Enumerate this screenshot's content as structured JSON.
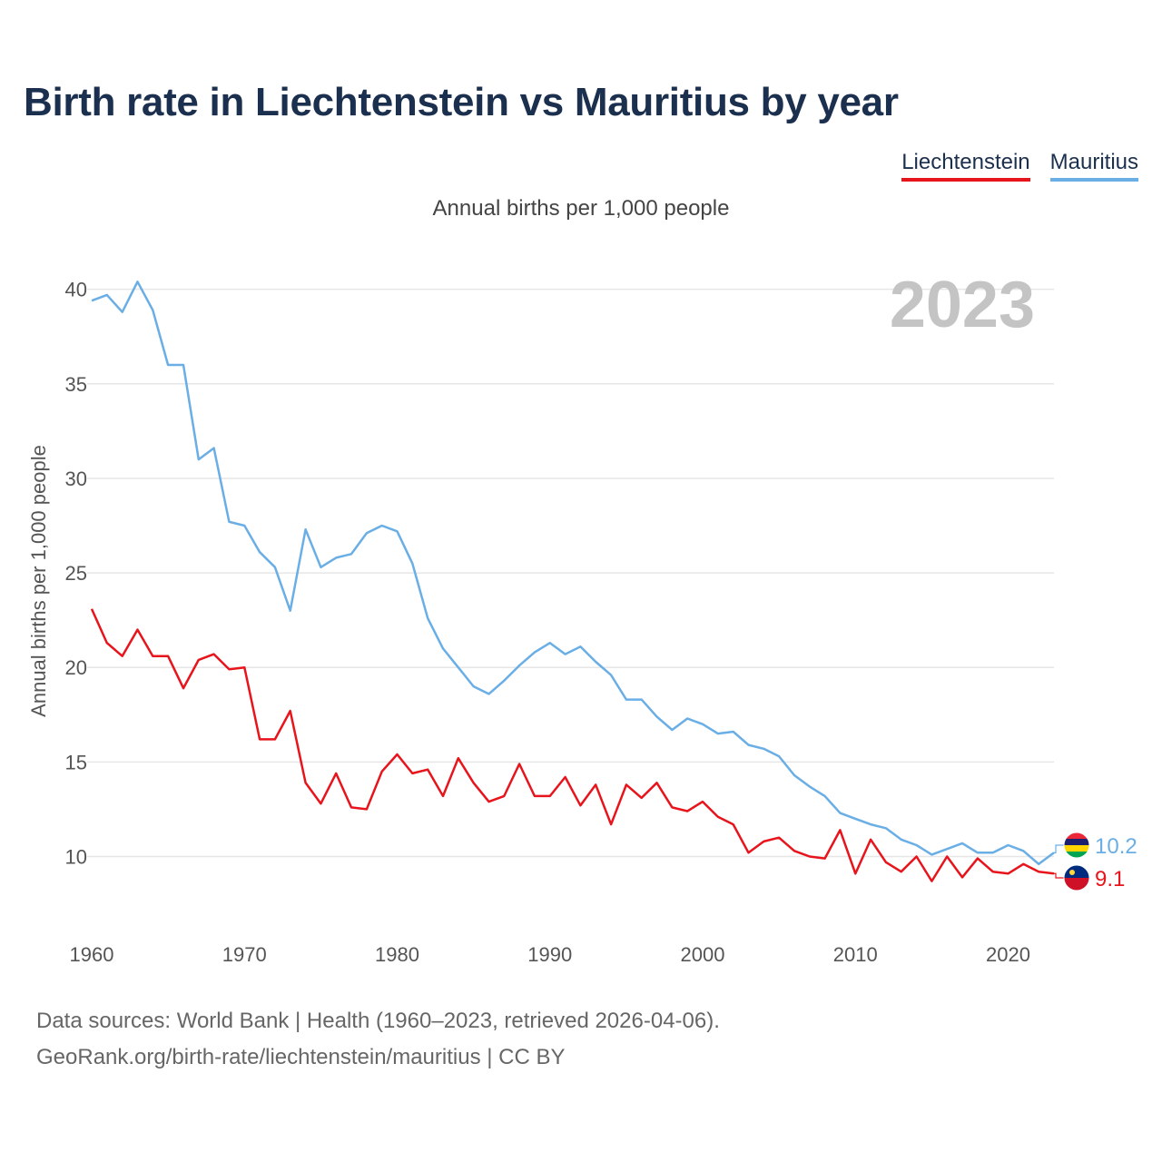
{
  "title": "Birth rate in Liechtenstein vs Mauritius by year",
  "subtitle": "Annual births per 1,000 people",
  "footer": {
    "source": "Data sources: World Bank | Health (1960–2023, retrieved 2026-04-06).",
    "credit": "GeoRank.org/birth-rate/liechtenstein/mauritius | CC BY"
  },
  "chart_data": {
    "type": "line",
    "title": "Birth rate in Liechtenstein vs Mauritius by year",
    "ylabel": "Annual births per 1,000 people",
    "xlabel": "",
    "xlim": [
      1960,
      2023
    ],
    "ylim": [
      7,
      42
    ],
    "x_ticks": [
      1960,
      1970,
      1980,
      1990,
      2000,
      2010,
      2020
    ],
    "y_ticks": [
      10,
      15,
      20,
      25,
      30,
      35,
      40
    ],
    "year_label": "2023",
    "grid": true,
    "legend_position": "top-right",
    "x": [
      1960,
      1961,
      1962,
      1963,
      1964,
      1965,
      1966,
      1967,
      1968,
      1969,
      1970,
      1971,
      1972,
      1973,
      1974,
      1975,
      1976,
      1977,
      1978,
      1979,
      1980,
      1981,
      1982,
      1983,
      1984,
      1985,
      1986,
      1987,
      1988,
      1989,
      1990,
      1991,
      1992,
      1993,
      1994,
      1995,
      1996,
      1997,
      1998,
      1999,
      2000,
      2001,
      2002,
      2003,
      2004,
      2005,
      2006,
      2007,
      2008,
      2009,
      2010,
      2011,
      2012,
      2013,
      2014,
      2015,
      2016,
      2017,
      2018,
      2019,
      2020,
      2021,
      2022,
      2023
    ],
    "series": [
      {
        "name": "Liechtenstein",
        "color": "#e8141c",
        "end_label": "9.1",
        "values": [
          23.1,
          21.3,
          20.6,
          22.0,
          20.6,
          20.6,
          18.9,
          20.4,
          20.7,
          19.9,
          20.0,
          16.2,
          16.2,
          17.7,
          13.9,
          12.8,
          14.4,
          12.6,
          12.5,
          14.5,
          15.4,
          14.4,
          14.6,
          13.2,
          15.2,
          13.9,
          12.9,
          13.2,
          14.9,
          13.2,
          13.2,
          14.2,
          12.7,
          13.8,
          11.7,
          13.8,
          13.1,
          13.9,
          12.6,
          12.4,
          12.9,
          12.1,
          11.7,
          10.2,
          10.8,
          11.0,
          10.3,
          10.0,
          9.9,
          11.4,
          9.1,
          10.9,
          9.7,
          9.2,
          10.0,
          8.7,
          10.0,
          8.9,
          9.9,
          9.2,
          9.1,
          9.6,
          9.2,
          9.1
        ]
      },
      {
        "name": "Mauritius",
        "color": "#6aaee6",
        "end_label": "10.2",
        "values": [
          39.4,
          39.7,
          38.8,
          40.4,
          38.9,
          36.0,
          36.0,
          31.0,
          31.6,
          27.7,
          27.5,
          26.1,
          25.3,
          23.0,
          27.3,
          25.3,
          25.8,
          26.0,
          27.1,
          27.5,
          27.2,
          25.5,
          22.6,
          21.0,
          20.0,
          19.0,
          18.6,
          19.3,
          20.1,
          20.8,
          21.3,
          20.7,
          21.1,
          20.3,
          19.6,
          18.3,
          18.3,
          17.4,
          16.7,
          17.3,
          17.0,
          16.5,
          16.6,
          15.9,
          15.7,
          15.3,
          14.3,
          13.7,
          13.2,
          12.3,
          12.0,
          11.7,
          11.5,
          10.9,
          10.6,
          10.1,
          10.4,
          10.7,
          10.2,
          10.2,
          10.6,
          10.3,
          9.6,
          10.2
        ]
      }
    ]
  }
}
